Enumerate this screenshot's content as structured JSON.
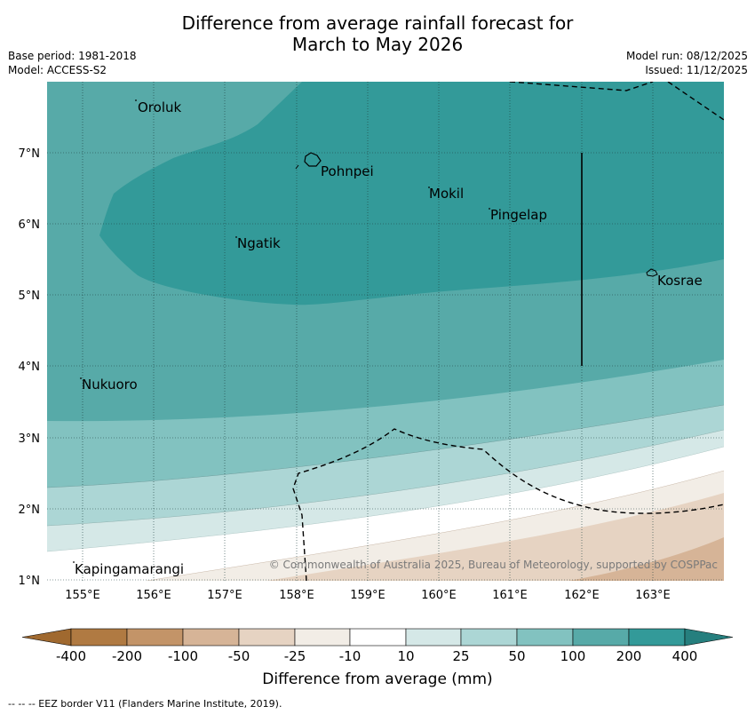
{
  "title_line1": "Difference from average rainfall forecast for",
  "title_line2": "March to May 2026",
  "base_period": "Base period: 1981-2018",
  "model": "Model: ACCESS-S2",
  "model_run": "Model run: 08/12/2025",
  "issued": "Issued: 11/12/2025",
  "copyright": "© Commonwealth of Australia 2025, Bureau of Meteorology, supported by COSPPac",
  "colorbar": {
    "title": "Difference from average (mm)",
    "labels": [
      "-400",
      "-200",
      "-100",
      "-50",
      "-25",
      "-10",
      "10",
      "25",
      "50",
      "100",
      "200",
      "400"
    ],
    "colors": [
      "#a0692f",
      "#b07a42",
      "#c39468",
      "#d6b497",
      "#e6d3c2",
      "#f2ede6",
      "#ffffff",
      "#d5e8e7",
      "#acd6d5",
      "#82c2c0",
      "#57aaa8",
      "#339a99",
      "#267f7e"
    ]
  },
  "axes": {
    "lon_labels": [
      "155°E",
      "156°E",
      "157°E",
      "158°E",
      "159°E",
      "160°E",
      "161°E",
      "162°E",
      "163°E"
    ],
    "lat_labels": [
      "7°N",
      "6°N",
      "5°N",
      "4°N",
      "3°N",
      "2°N",
      "1°N"
    ]
  },
  "places": [
    "Oroluk",
    "Pohnpei",
    "Mokil",
    "Pingelap",
    "Ngatik",
    "Kosrae",
    "Nukuoro",
    "Kapingamarangi"
  ],
  "footnote": "--  --  -- EEZ border V11 (Flanders Marine Institute, 2019)."
}
